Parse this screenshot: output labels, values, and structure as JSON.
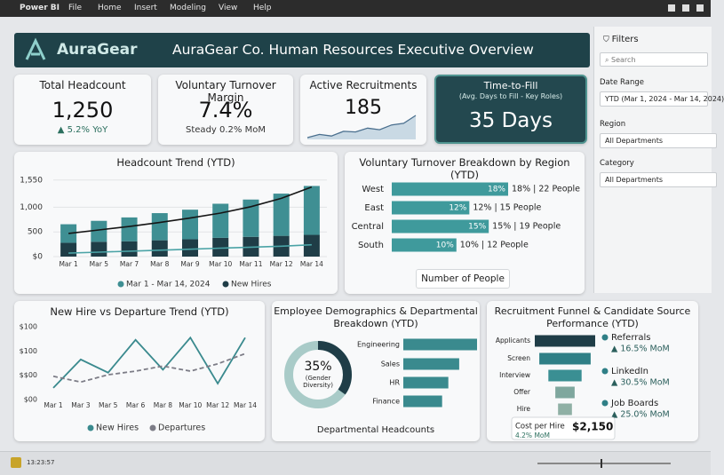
{
  "menu": [
    "Power BI",
    "File",
    "Home",
    "Insert",
    "Modeling",
    "View",
    "Help"
  ],
  "header": {
    "logo": "AuraGear",
    "title": "AuraGear Co. Human Resources Executive Overview"
  },
  "kpis": [
    {
      "title": "Total Headcount",
      "value": "1,250",
      "note": "▲ 5.2% YoY"
    },
    {
      "title": "Voluntary Turnover Margin",
      "value": "7.4%",
      "note": "Steady 0.2% MoM"
    },
    {
      "title": "Active Recruitments",
      "value": "185",
      "sparkline": [
        3,
        4,
        3.5,
        5,
        4.8,
        6,
        5.5,
        7,
        7.5,
        10
      ]
    },
    {
      "title": "Time-to-Fill",
      "subtitle": "(Avg. Days to Fill - Key Roles)",
      "value": "35 Days"
    }
  ],
  "headcount_trend": {
    "type": "bar",
    "title": "Headcount Trend (YTD)",
    "categories": [
      "Mar 1",
      "Mar 5",
      "Mar 7",
      "Mar 8",
      "Mar 9",
      "Mar 10",
      "Mar 11",
      "Mar 12",
      "Mar 14"
    ],
    "ylim": [
      0,
      1600
    ],
    "yticks": [
      {
        "value": 0,
        "label": "$0"
      },
      500,
      {
        "value": 1000,
        "label": "1,000"
      },
      {
        "value": 1550,
        "label": "1,550"
      }
    ],
    "series": [
      {
        "name": "Mar 1 - Mar 14, 2024",
        "color": "#3f8f93",
        "values": [
          375,
          424,
          483,
          550,
          600,
          690,
          755,
          855,
          990
        ]
      },
      {
        "name": "New Hires",
        "color": "#1f3d47",
        "values": [
          280,
          300,
          310,
          330,
          350,
          380,
          400,
          420,
          440
        ]
      }
    ],
    "lines": [
      {
        "color": "#151515",
        "values": [
          470,
          540,
          610,
          690,
          780,
          880,
          1010,
          1180,
          1410
        ]
      },
      {
        "color": "#4aa3a6",
        "values": [
          70,
          90,
          110,
          130,
          150,
          170,
          190,
          210,
          240
        ]
      }
    ]
  },
  "turnover": {
    "type": "hbar",
    "title": "Voluntary Turnover Breakdown by Region (YTD)",
    "categories": [
      "West",
      "East",
      "Central",
      "South"
    ],
    "values": [
      18,
      12,
      15,
      10
    ],
    "value_labels": [
      "18%",
      "12%",
      "15%",
      "10%"
    ],
    "annotations": [
      "18% | 22 People",
      "12% | 15 People",
      "15% | 19 People",
      "10% | 12 People"
    ],
    "color": "#3f9a9c",
    "xlabel": "Number of People"
  },
  "hire_departure": {
    "type": "line",
    "title": "New Hire vs Departure Trend (YTD)",
    "categories": [
      "Mar 1",
      "Mar 3",
      "Mar 5",
      "Mar 6",
      "Mar 8",
      "Mar 10",
      "Mar 12",
      "Mar 14"
    ],
    "ylim": [
      0,
      100
    ],
    "ytick_labels": [
      "$100",
      "$100",
      "$$00",
      "$00"
    ],
    "series": [
      {
        "name": "New Hires",
        "color": "#3a8a8e",
        "values": [
          16,
          55,
          37,
          82,
          41,
          85,
          22,
          85
        ]
      },
      {
        "name": "Departures",
        "color": "#7c7c86",
        "dashed": true,
        "values": [
          32,
          24,
          34,
          39,
          46,
          39,
          49,
          63
        ]
      }
    ]
  },
  "demographics": {
    "title": "Employee Demographics & Departmental Breakdown (YTD)",
    "donut": {
      "value": 35,
      "label": "35%",
      "caption": "(Gender Diversity)"
    },
    "departments": {
      "type": "hbar",
      "categories": [
        "Engineering",
        "Sales",
        "HR",
        "Finance"
      ],
      "values": [
        95,
        72,
        58,
        50
      ],
      "color": "#3a8a8e",
      "xlabel": "Departmental Headcounts"
    }
  },
  "funnel": {
    "type": "funnel",
    "title": "Recruitment Funnel & Candidate Source Performance (YTD)",
    "stages": [
      "Applicants",
      "Screen",
      "Interview",
      "Offer",
      "Hire"
    ],
    "values": [
      100,
      85,
      55,
      32,
      23
    ],
    "colors": [
      "#1f3d47",
      "#2f7f86",
      "#3a8f93",
      "#7fa79e",
      "#8fb0a5"
    ],
    "sources": [
      {
        "name": "Referrals",
        "change": "▲ 16.5% MoM"
      },
      {
        "name": "LinkedIn",
        "change": "▲ 30.5% MoM"
      },
      {
        "name": "Job Boards",
        "change": "▲ 25.0% MoM"
      }
    ],
    "cost": {
      "label": "Cost per Hire",
      "value": "$2,150",
      "change": "4.2% MoM"
    }
  },
  "filters": {
    "title": "Filters",
    "search": "Search",
    "fields": [
      {
        "label": "Date Range",
        "value": "YTD (Mar 1, 2024 - Mar 14, 2024)"
      },
      {
        "label": "Region",
        "value": "All Departments"
      },
      {
        "label": "Category",
        "value": "All Departments"
      }
    ]
  },
  "status_bar": {
    "time": "13:23:57"
  }
}
